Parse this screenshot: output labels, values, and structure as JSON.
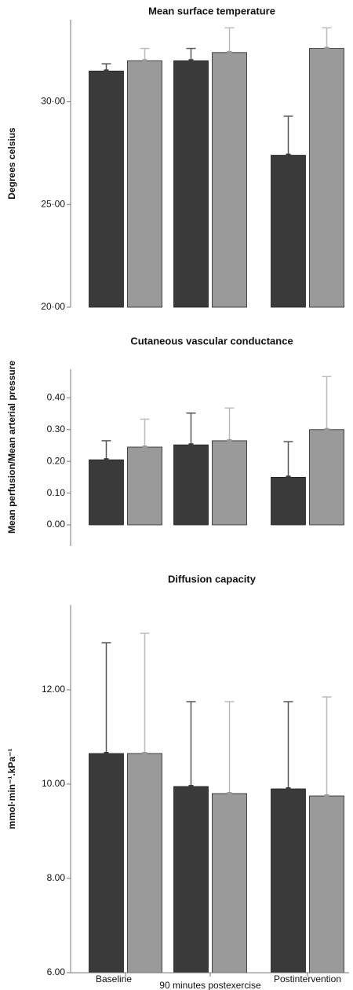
{
  "chart_data": [
    {
      "type": "bar",
      "title": "Mean surface temperature",
      "ylabel": "Degrees celsius",
      "categories": [
        null,
        null,
        null
      ],
      "series": [
        {
          "color": "#3a3a3a",
          "values": [
            31.5,
            32.0,
            27.4
          ],
          "errors": [
            0.35,
            0.6,
            1.9
          ]
        },
        {
          "color": "#9a9a9a",
          "values": [
            32.0,
            32.4,
            32.6
          ],
          "errors": [
            0.6,
            1.2,
            1.0
          ]
        }
      ],
      "ylim": [
        20,
        34
      ],
      "yticks": [
        {
          "value": 20,
          "label": "20·00"
        },
        {
          "value": 25,
          "label": "25·00"
        },
        {
          "value": 30,
          "label": "30·00"
        }
      ]
    },
    {
      "type": "bar",
      "title": "Cutaneous vascular conductance",
      "ylabel": "Mean perfusion/Mean arterial pressure",
      "categories": [
        null,
        null,
        null
      ],
      "series": [
        {
          "color": "#3a3a3a",
          "values": [
            0.205,
            0.252,
            0.15
          ],
          "errors": [
            0.06,
            0.1,
            0.112
          ]
        },
        {
          "color": "#9a9a9a",
          "values": [
            0.245,
            0.265,
            0.3
          ],
          "errors": [
            0.088,
            0.103,
            0.167
          ]
        }
      ],
      "ylim": [
        0,
        0.49
      ],
      "yticks": [
        {
          "value": 0,
          "label": "0.00"
        },
        {
          "value": 0.1,
          "label": "0.10"
        },
        {
          "value": 0.2,
          "label": "0.20"
        },
        {
          "value": 0.3,
          "label": "0.30"
        },
        {
          "value": 0.4,
          "label": "0.40"
        }
      ]
    },
    {
      "type": "bar",
      "title": "Diffusion capacity",
      "ylabel": "mmol·min⁻¹.kPa⁻¹",
      "categories": [
        "Baseline",
        "90 minutes postexercise",
        "Postintervention"
      ],
      "series": [
        {
          "color": "#3a3a3a",
          "values": [
            10.65,
            9.95,
            9.9
          ],
          "errors": [
            2.35,
            1.8,
            1.85
          ]
        },
        {
          "color": "#9a9a9a",
          "values": [
            10.65,
            9.8,
            9.75
          ],
          "errors": [
            2.55,
            1.95,
            2.1
          ]
        }
      ],
      "ylim": [
        6,
        13.8
      ],
      "yticks": [
        {
          "value": 6,
          "label": "6.00"
        },
        {
          "value": 8,
          "label": "8.00"
        },
        {
          "value": 10,
          "label": "10.00"
        },
        {
          "value": 12,
          "label": "12.00"
        }
      ]
    }
  ]
}
